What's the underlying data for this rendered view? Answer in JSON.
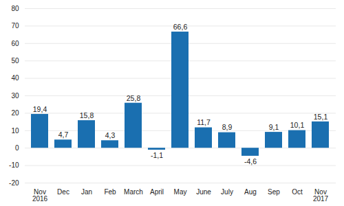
{
  "chart_data": {
    "type": "bar",
    "categories": [
      "Nov\n2016",
      "Dec",
      "Jan",
      "Feb",
      "March",
      "April",
      "May",
      "June",
      "July",
      "Aug",
      "Sep",
      "Oct",
      "Nov\n2017"
    ],
    "values": [
      19.4,
      4.7,
      15.8,
      4.3,
      25.8,
      -1.1,
      66.6,
      11.7,
      8.9,
      -4.6,
      9.1,
      10.1,
      15.1
    ],
    "value_labels": [
      "19,4",
      "4,7",
      "15,8",
      "4,3",
      "25,8",
      "-1,1",
      "66,6",
      "11,7",
      "8,9",
      "-4,6",
      "9,1",
      "10,1",
      "15,1"
    ],
    "color": "#1a6fb0",
    "ylim": [
      -20,
      80
    ],
    "yticks": [
      -20,
      -10,
      0,
      10,
      20,
      30,
      40,
      50,
      60,
      70,
      80
    ],
    "grid": true,
    "data_labels": true
  }
}
